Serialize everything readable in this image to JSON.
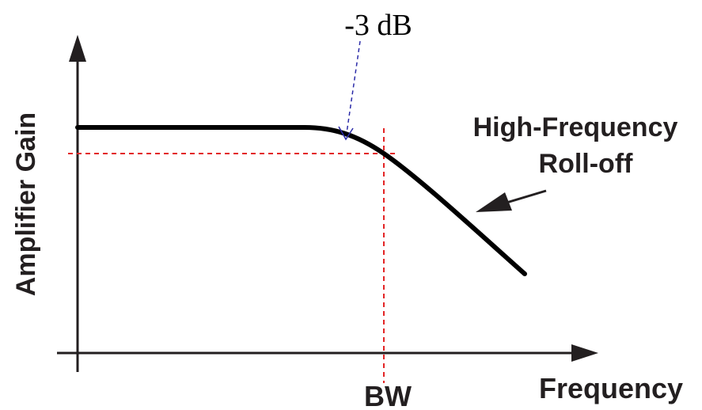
{
  "y_axis_label": "Amplifier Gain",
  "x_axis_label": "Frequency",
  "bandwidth_label": "BW",
  "db_marker_label": "-3 dB",
  "rolloff_label_line1": "High-Frequency",
  "rolloff_label_line2": "Roll-off",
  "colors": {
    "curve": "#000000",
    "axes": "#231f20",
    "dashed_reference": "#e32526",
    "db_arrow": "#2b2ba8"
  }
}
